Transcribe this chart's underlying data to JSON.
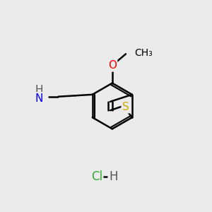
{
  "background_color": "#ebebeb",
  "bond_color": "#000000",
  "bond_width": 1.8,
  "atom_colors": {
    "S": "#ccaa00",
    "O": "#ff0000",
    "N": "#0000ff",
    "H": "#555555",
    "Cl": "#33aa33",
    "C": "#000000"
  },
  "font_size_atom": 11,
  "font_size_small": 10
}
